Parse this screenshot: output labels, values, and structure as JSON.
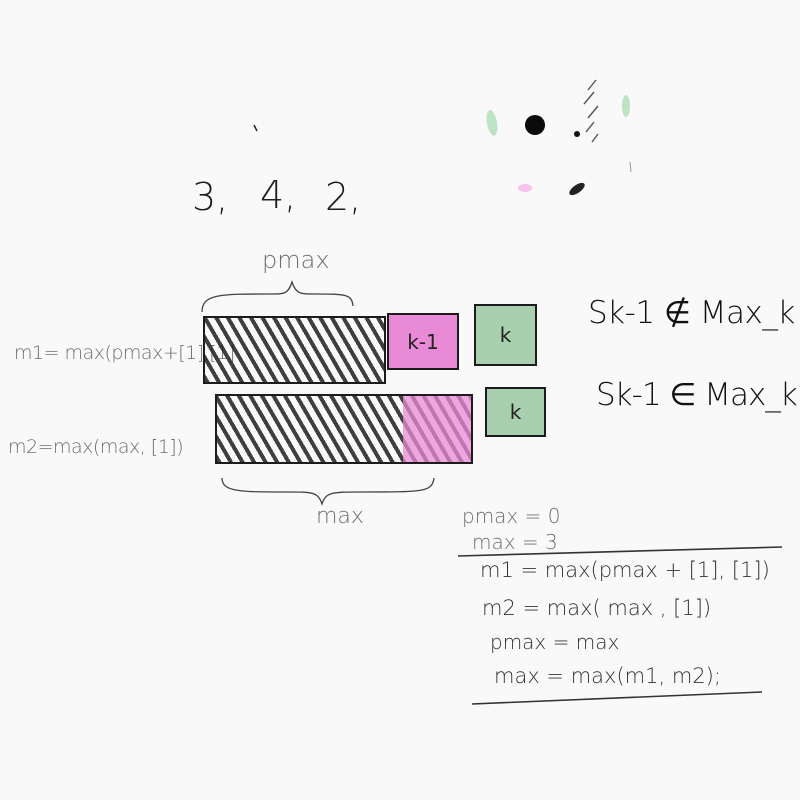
{
  "sequence": {
    "n1": "3,",
    "n2": "4,",
    "n3": "2,"
  },
  "labels": {
    "pmax": "pmax",
    "max": "max",
    "m1_formula": "m1= max(pmax+[1],[1]",
    "m2_formula": "m2=max(max, [1])"
  },
  "boxes": {
    "k_minus_1": "k-1",
    "k_top": "k",
    "k_bottom": "k"
  },
  "conditions": {
    "not_in": "Sk-1 ∉ Max_k",
    "in": "Sk-1 ∈ Max_k"
  },
  "code": {
    "init_pmax": "pmax = 0",
    "init_max": "max = 3",
    "line1": "m1 = max(pmax + [1], [1])",
    "line2": "m2 = max( max , [1])",
    "line3": "pmax = max",
    "line4": "max = max(m1, m2);"
  },
  "colors": {
    "background": "#f9f9f9",
    "ink": "#1e1e1e",
    "pink": "#e98ad6",
    "green": "#a8d0ae"
  }
}
